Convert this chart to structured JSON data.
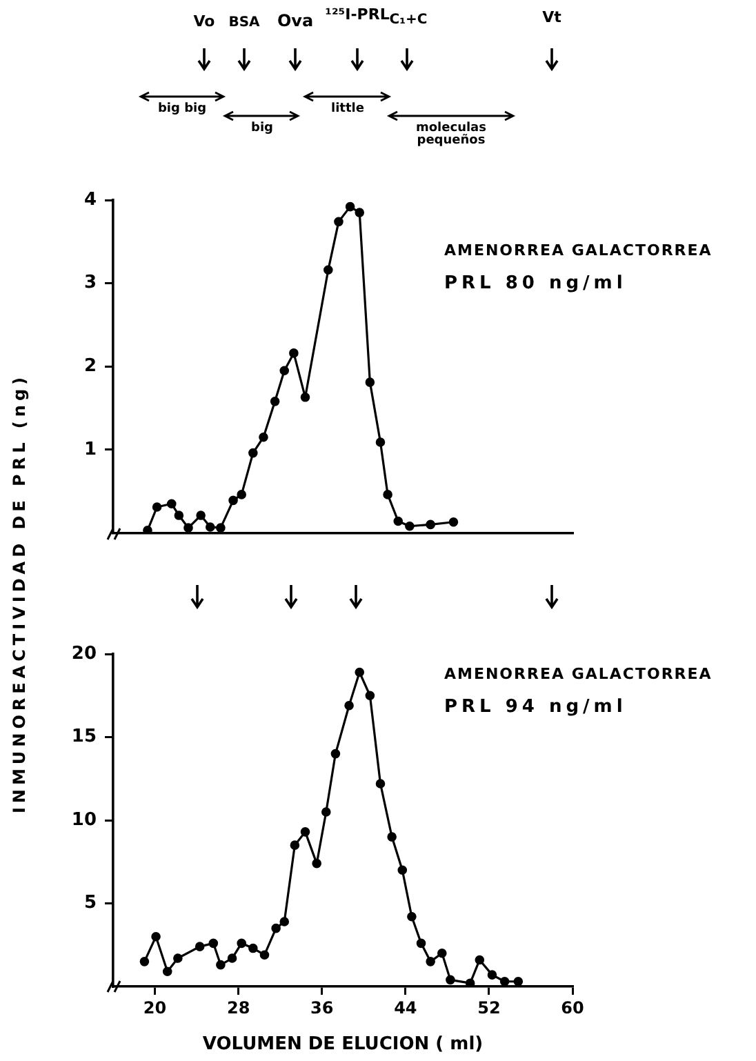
{
  "chart_data": [
    {
      "type": "line",
      "ylabel": "INMUNOREACTIVIDAD DE PRL (ng)",
      "annotations": [
        "AMENORREA GALACTORREA",
        "PRL 80 ng/ml",
        "Vo",
        "BSA",
        "Ova",
        "¹²⁵I-PRL",
        "C₁+C",
        "Vt",
        "big big",
        "big",
        "little",
        "moleculas pequeños"
      ],
      "xlim": [
        16,
        60
      ],
      "ylim": [
        0,
        4
      ],
      "yticks": [
        1,
        2,
        3,
        4
      ],
      "tick_labels": "y",
      "marker": "circle",
      "line_style": "solid",
      "series": [
        {
          "color": "#000000",
          "x": [
            19.3,
            20.2,
            21.6,
            22.3,
            23.2,
            24.4,
            25.3,
            26.3,
            27.5,
            28.3,
            29.4,
            30.4,
            31.5,
            32.4,
            33.3,
            34.4,
            36.6,
            37.6,
            38.7,
            39.6,
            40.6,
            41.6,
            42.3,
            43.3,
            44.4,
            46.4,
            48.6
          ],
          "values": [
            0.03,
            0.31,
            0.35,
            0.21,
            0.06,
            0.21,
            0.07,
            0.06,
            0.39,
            0.46,
            0.96,
            1.15,
            1.58,
            1.95,
            2.16,
            1.63,
            3.16,
            3.74,
            3.92,
            3.85,
            1.81,
            1.09,
            0.46,
            0.14,
            0.08,
            0.1,
            0.13
          ]
        }
      ]
    },
    {
      "type": "line",
      "xlabel": "VOLUMEN DE ELUCION ( ml)",
      "annotations": [
        "AMENORREA GALACTORREA",
        "PRL 94 ng/ml"
      ],
      "xlim": [
        16,
        60
      ],
      "xticks": [
        20,
        28,
        36,
        44,
        52,
        60
      ],
      "ylim": [
        0,
        20
      ],
      "yticks": [
        5,
        10,
        15,
        20
      ],
      "marker": "circle",
      "line_style": "solid",
      "series": [
        {
          "color": "#000000",
          "x": [
            19,
            20.1,
            21.2,
            22.2,
            24.3,
            25.6,
            26.3,
            27.4,
            28.3,
            29.4,
            30.5,
            31.6,
            32.4,
            33.4,
            34.4,
            35.5,
            36.4,
            37.3,
            38.6,
            39.6,
            40.6,
            41.6,
            42.7,
            43.7,
            44.6,
            45.5,
            46.4,
            47.5,
            48.3,
            50.2,
            51.1,
            52.3,
            53.5,
            54.8
          ],
          "values": [
            1.5,
            3,
            0.9,
            1.7,
            2.4,
            2.6,
            1.3,
            1.7,
            2.6,
            2.3,
            1.9,
            3.5,
            3.9,
            8.5,
            9.3,
            7.4,
            10.5,
            14,
            16.9,
            18.9,
            17.5,
            12.2,
            9,
            7,
            4.2,
            2.6,
            1.5,
            2,
            0.4,
            0.2,
            1.6,
            0.7,
            0.3,
            0.3
          ]
        }
      ]
    }
  ]
}
